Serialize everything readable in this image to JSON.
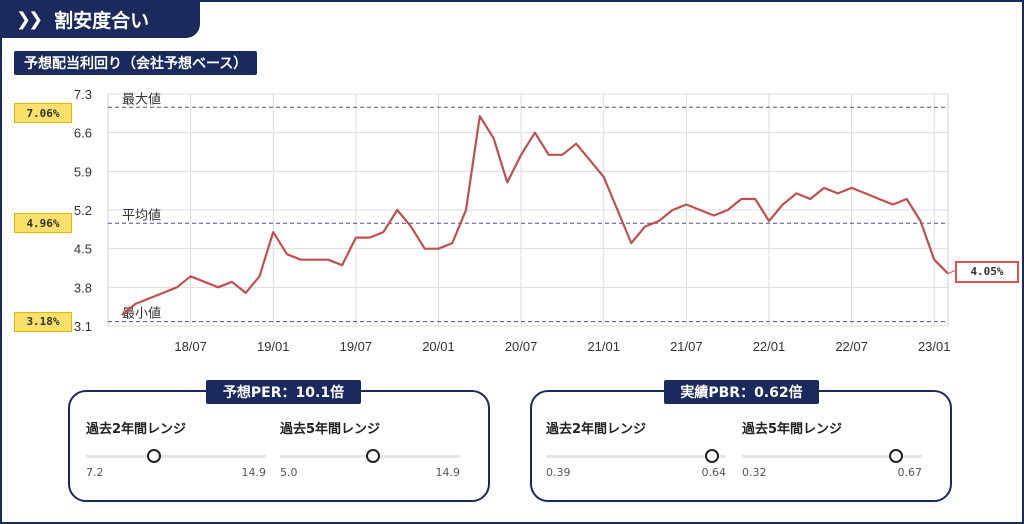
{
  "header": {
    "icon": "double-chevron-right-icon",
    "title": "割安度合い"
  },
  "section_title": "予想配当利回り（会社予想ベース）",
  "chart_data": {
    "type": "line",
    "title": "予想配当利回り（会社予想ベース）",
    "y_ticks": [
      "7.3",
      "6.6",
      "5.9",
      "5.2",
      "4.5",
      "3.8",
      "3.1"
    ],
    "ylim": [
      3.1,
      7.3
    ],
    "x_ticks": [
      "18/07",
      "19/01",
      "19/07",
      "20/01",
      "20/07",
      "21/01",
      "21/07",
      "22/01",
      "22/07",
      "23/01"
    ],
    "grid": "horizontal",
    "reference_lines": [
      {
        "label": "最大値",
        "value": 7.06,
        "tag": "7.06%"
      },
      {
        "label": "平均値",
        "value": 4.96,
        "tag": "4.96%"
      },
      {
        "label": "最小値",
        "value": 3.18,
        "tag": "3.18%"
      }
    ],
    "current": {
      "value": 4.05,
      "tag": "4.05%"
    },
    "line_color": "#c0504d",
    "series": [
      {
        "x": [
          "18/02",
          "18/03",
          "18/04",
          "18/05",
          "18/06",
          "18/07",
          "18/08",
          "18/09",
          "18/10",
          "18/11",
          "18/12",
          "19/01",
          "19/02",
          "19/03",
          "19/04",
          "19/05",
          "19/06",
          "19/07",
          "19/08",
          "19/09",
          "19/10",
          "19/11",
          "19/12",
          "20/01",
          "20/02",
          "20/03",
          "20/04",
          "20/05",
          "20/06",
          "20/07",
          "20/08",
          "20/09",
          "20/10",
          "20/11",
          "20/12",
          "21/01",
          "21/02",
          "21/03",
          "21/04",
          "21/05",
          "21/06",
          "21/07",
          "21/08",
          "21/09",
          "21/10",
          "21/11",
          "21/12",
          "22/01",
          "22/02",
          "22/03",
          "22/04",
          "22/05",
          "22/06",
          "22/07",
          "22/08",
          "22/09",
          "22/10",
          "22/11",
          "22/12",
          "23/01",
          "23/02"
        ],
        "values": [
          3.3,
          3.5,
          3.6,
          3.7,
          3.8,
          4.0,
          3.9,
          3.8,
          3.9,
          3.7,
          4.0,
          4.8,
          4.4,
          4.3,
          4.3,
          4.3,
          4.2,
          4.7,
          4.7,
          4.8,
          5.2,
          4.9,
          4.5,
          4.5,
          4.6,
          5.2,
          6.9,
          6.5,
          5.7,
          6.2,
          6.6,
          6.2,
          6.2,
          6.4,
          6.1,
          5.8,
          5.2,
          4.6,
          4.9,
          5.0,
          5.2,
          5.3,
          5.2,
          5.1,
          5.2,
          5.4,
          5.4,
          5.0,
          5.3,
          5.5,
          5.4,
          5.6,
          5.5,
          5.6,
          5.5,
          5.4,
          5.3,
          5.4,
          5.0,
          4.3,
          4.05
        ]
      }
    ]
  },
  "per": {
    "title": "予想PER：10.1倍",
    "r2": {
      "label": "過去2年間レンジ",
      "min": "7.2",
      "max": "14.9",
      "value": 10.1
    },
    "r5": {
      "label": "過去5年間レンジ",
      "min": "5.0",
      "max": "14.9",
      "value": 10.1
    }
  },
  "pbr": {
    "title": "実績PBR：0.62倍",
    "r2": {
      "label": "過去2年間レンジ",
      "min": "0.39",
      "max": "0.64",
      "value": 0.62
    },
    "r5": {
      "label": "過去5年間レンジ",
      "min": "0.32",
      "max": "0.67",
      "value": 0.62
    }
  }
}
